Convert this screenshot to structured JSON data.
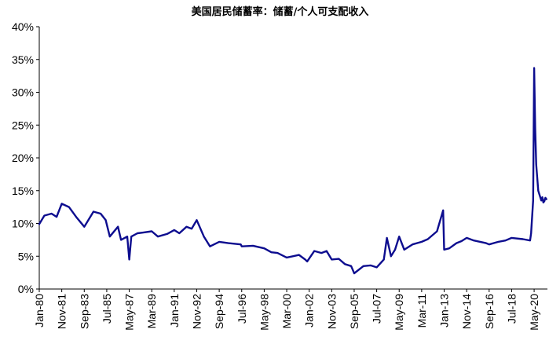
{
  "chart_data": {
    "type": "line",
    "title": "美国居民储蓄率：储蓄/个人可支配收入",
    "y_ticks": [
      "0%",
      "5%",
      "10%",
      "15%",
      "20%",
      "25%",
      "30%",
      "35%",
      "40%"
    ],
    "ylim": [
      0,
      40
    ],
    "x_ticks": [
      "Jan-80",
      "Nov-81",
      "Sep-83",
      "Jul-85",
      "May-87",
      "Mar-89",
      "Jan-91",
      "Nov-92",
      "Sep-94",
      "Jul-96",
      "May-98",
      "Mar-00",
      "Jan-02",
      "Nov-03",
      "Sep-05",
      "Jul-07",
      "May-09",
      "Mar-11",
      "Jan-13",
      "Nov-14",
      "Sep-16",
      "Jul-18",
      "May-20"
    ],
    "xlim": [
      "1980-01",
      "2021-06"
    ],
    "grid": false,
    "legend": "none",
    "color": "#0d0d8f",
    "series": [
      {
        "x": [
          "1980-01",
          "1980-06",
          "1981-01",
          "1981-06",
          "1981-11",
          "1982-06",
          "1983-01",
          "1983-09",
          "1984-06",
          "1985-01",
          "1985-06",
          "1985-10",
          "1986-06",
          "1986-09",
          "1987-03",
          "1987-05",
          "1987-07",
          "1988-01",
          "1988-06",
          "1989-03",
          "1989-09",
          "1990-06",
          "1991-01",
          "1991-06",
          "1992-01",
          "1992-06",
          "1992-11",
          "1993-06",
          "1993-12",
          "1994-09",
          "1995-06",
          "1996-06",
          "1996-07",
          "1997-06",
          "1998-05",
          "1998-12",
          "1999-06",
          "2000-03",
          "2000-09",
          "2001-03",
          "2001-09",
          "2001-11",
          "2002-06",
          "2003-01",
          "2003-06",
          "2003-11",
          "2004-06",
          "2004-12",
          "2005-06",
          "2005-09",
          "2006-06",
          "2007-01",
          "2007-07",
          "2008-02",
          "2008-05",
          "2008-09",
          "2009-01",
          "2009-05",
          "2009-10",
          "2010-06",
          "2011-03",
          "2011-09",
          "2012-06",
          "2012-12",
          "2013-01",
          "2013-06",
          "2014-01",
          "2014-06",
          "2014-11",
          "2015-06",
          "2016-06",
          "2016-09",
          "2017-06",
          "2018-01",
          "2018-07",
          "2019-06",
          "2020-01",
          "2020-02",
          "2020-04",
          "2020-05",
          "2020-06",
          "2020-07",
          "2020-09",
          "2020-12",
          "2021-01",
          "2021-02",
          "2021-03",
          "2021-04",
          "2021-05"
        ],
        "values": [
          9.9,
          11.2,
          11.5,
          11.0,
          13.0,
          12.5,
          11.0,
          9.5,
          11.8,
          11.5,
          10.5,
          8.0,
          9.5,
          7.5,
          8.0,
          4.5,
          8.0,
          8.5,
          8.6,
          8.8,
          8.0,
          8.4,
          9.0,
          8.5,
          9.5,
          9.2,
          10.5,
          8.0,
          6.5,
          7.2,
          7.0,
          6.8,
          6.5,
          6.6,
          6.2,
          5.6,
          5.5,
          4.8,
          5.0,
          5.2,
          4.5,
          4.2,
          5.8,
          5.5,
          5.8,
          4.5,
          4.6,
          3.8,
          3.5,
          2.4,
          3.5,
          3.6,
          3.3,
          4.5,
          7.8,
          5.0,
          6.0,
          8.0,
          6.0,
          6.8,
          7.2,
          7.6,
          8.8,
          12.0,
          6.0,
          6.2,
          7.0,
          7.3,
          7.8,
          7.4,
          7.0,
          6.8,
          7.2,
          7.4,
          7.8,
          7.6,
          7.4,
          8.5,
          13.5,
          33.7,
          24.5,
          19.0,
          15.0,
          13.5,
          14.0,
          13.2,
          13.4,
          13.9,
          13.7
        ]
      }
    ]
  }
}
